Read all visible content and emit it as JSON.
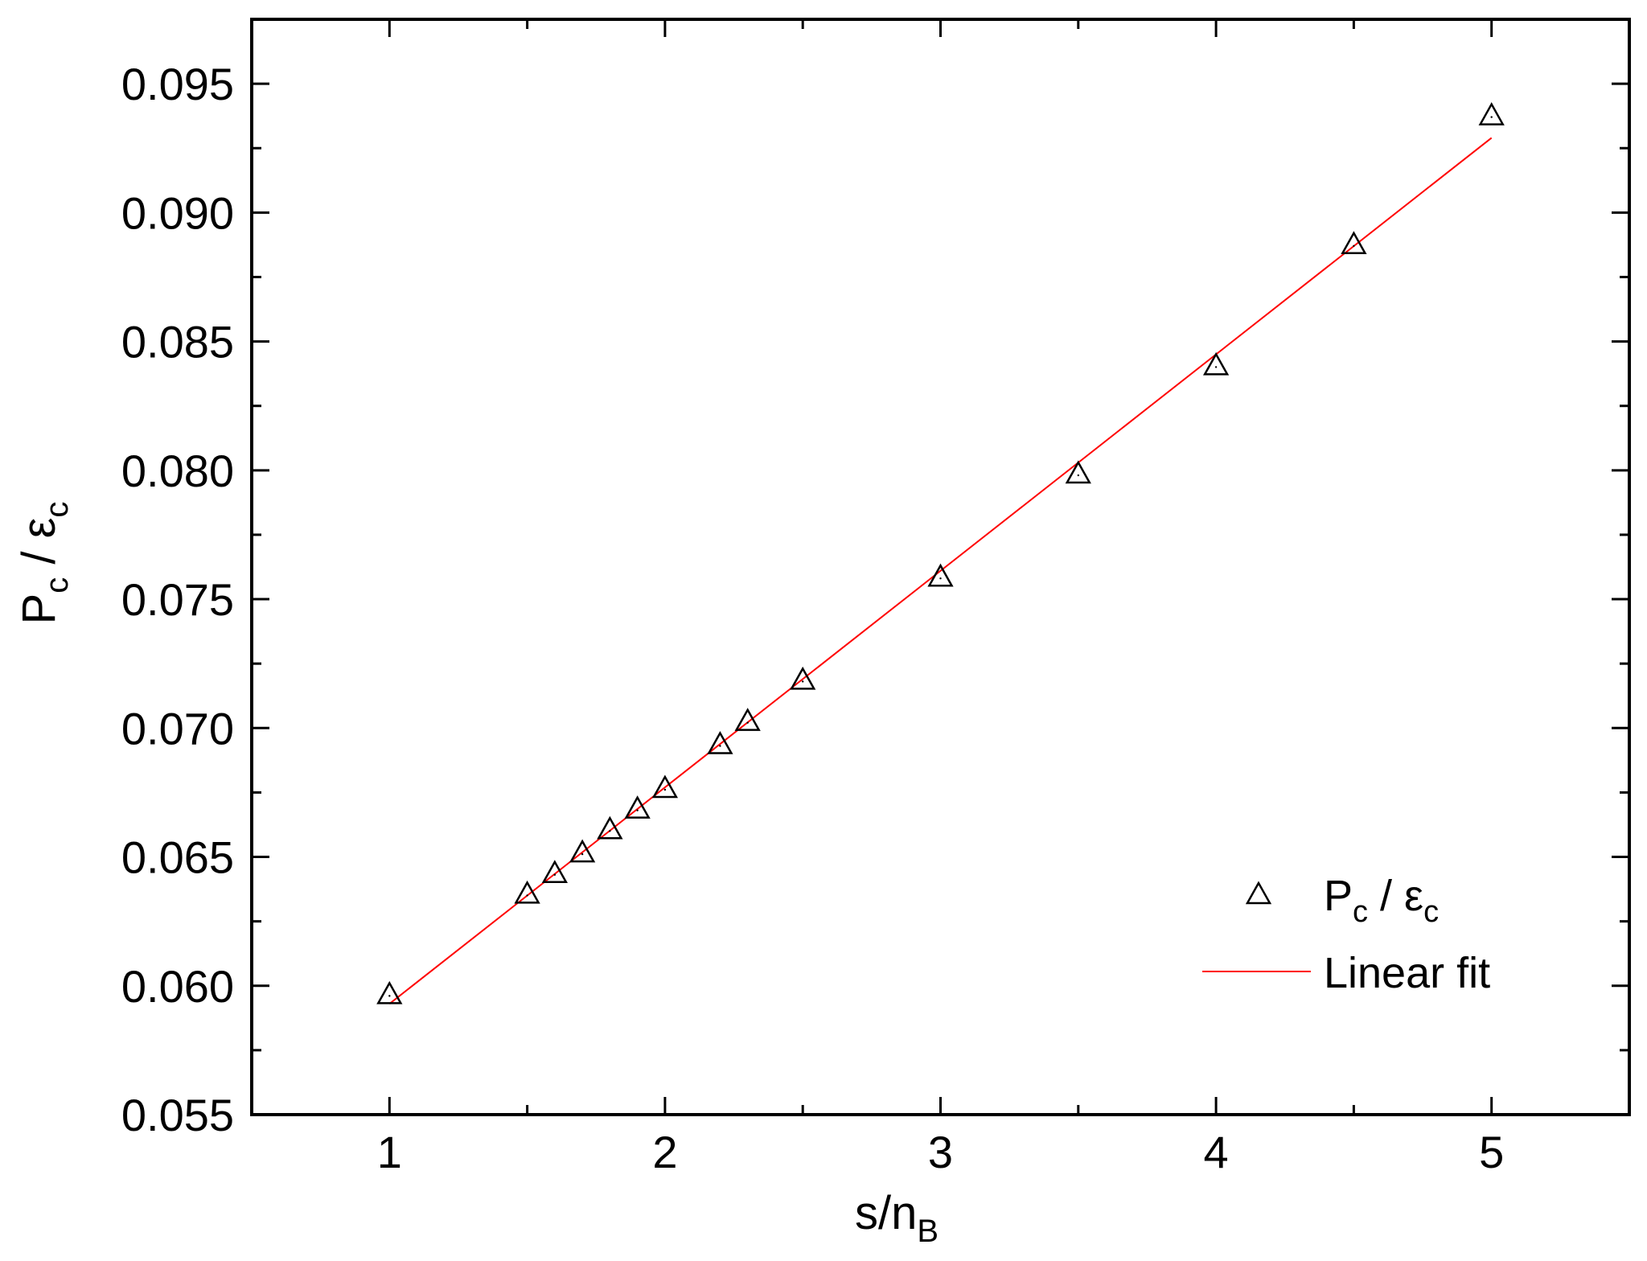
{
  "chart_data": {
    "type": "scatter",
    "title": "",
    "xlabel": {
      "main": "s/n",
      "sub": "B"
    },
    "ylabel": {
      "main": "P",
      "sub1": "c",
      "mid": " / ε",
      "sub2": "c"
    },
    "xlim": [
      0.5,
      5.5
    ],
    "ylim": [
      0.055,
      0.0975
    ],
    "xticks": [
      1,
      2,
      3,
      4,
      5
    ],
    "xtick_labels": [
      "1",
      "2",
      "3",
      "4",
      "5"
    ],
    "yticks": [
      0.055,
      0.06,
      0.065,
      0.07,
      0.075,
      0.08,
      0.085,
      0.09,
      0.095
    ],
    "ytick_labels": [
      "0.055",
      "0.060",
      "0.065",
      "0.070",
      "0.075",
      "0.080",
      "0.085",
      "0.090",
      "0.095"
    ],
    "grid": false,
    "legend_position": "bottom-right",
    "series": [
      {
        "name": {
          "main": "P",
          "sub1": "c",
          "mid": " / ε",
          "sub2": "c"
        },
        "kind": "scatter",
        "marker": "triangle-open",
        "color": "#000000",
        "x": [
          1.0,
          1.5,
          1.6,
          1.7,
          1.8,
          1.9,
          2.0,
          2.2,
          2.3,
          2.5,
          3.0,
          3.5,
          4.0,
          4.5,
          5.0
        ],
        "y": [
          0.0597,
          0.0636,
          0.0644,
          0.0652,
          0.0661,
          0.0669,
          0.0677,
          0.0694,
          0.0703,
          0.0719,
          0.0759,
          0.0799,
          0.0841,
          0.0888,
          0.0938
        ]
      },
      {
        "name": "Linear fit",
        "kind": "line",
        "color": "#ff0000",
        "x": [
          1.0,
          5.0
        ],
        "y": [
          0.0593,
          0.0929
        ]
      }
    ]
  }
}
